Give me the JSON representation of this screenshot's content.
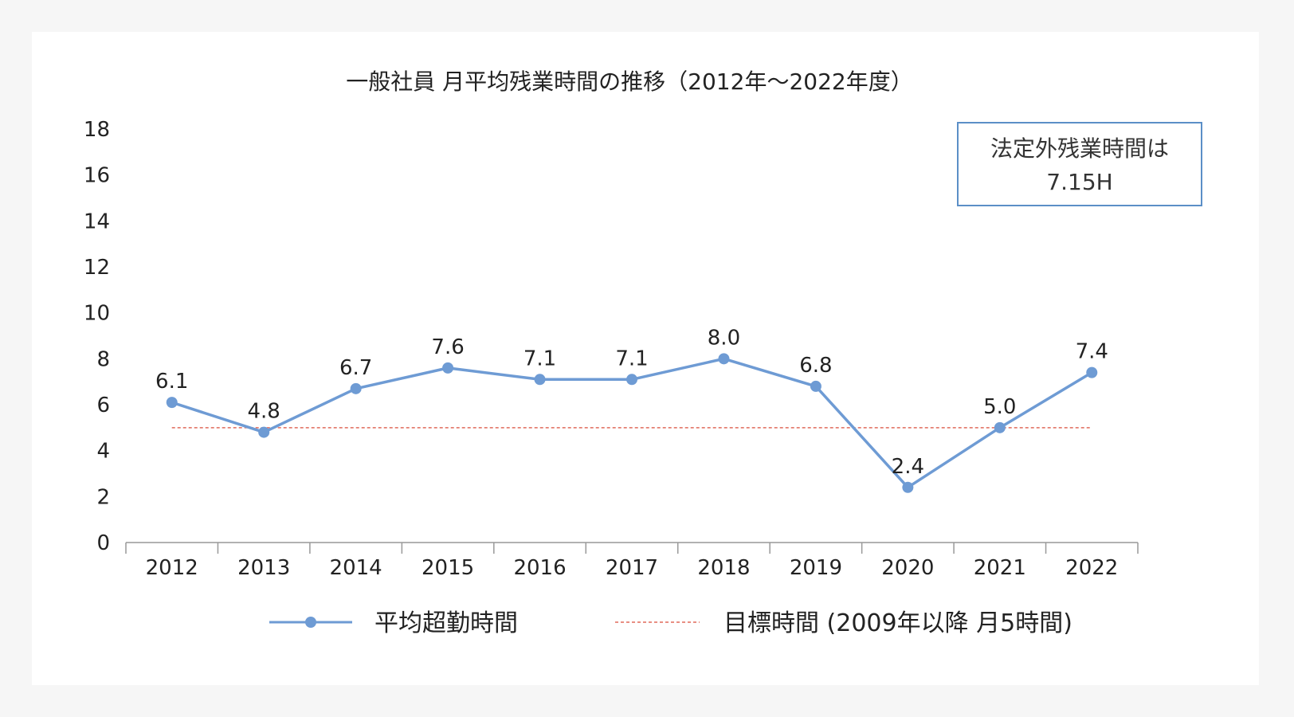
{
  "chart_data": {
    "type": "line",
    "title": "一般社員 月平均残業時間の推移（2012年〜2022年度）",
    "categories": [
      "2012",
      "2013",
      "2014",
      "2015",
      "2016",
      "2017",
      "2018",
      "2019",
      "2020",
      "2021",
      "2022"
    ],
    "series": [
      {
        "name": "平均超勤時間",
        "values": [
          6.1,
          4.8,
          6.7,
          7.6,
          7.1,
          7.1,
          8.0,
          6.8,
          2.4,
          5.0,
          7.4
        ],
        "data_labels": [
          "6.1",
          "4.8",
          "6.7",
          "7.6",
          "7.1",
          "7.1",
          "8.0",
          "6.8",
          "2.4",
          "5.0",
          "7.4"
        ],
        "color": "#6e9bd4",
        "marker": "circle"
      },
      {
        "name": "目標時間 (2009年以降 月5時間)",
        "values": [
          5,
          5,
          5,
          5,
          5,
          5,
          5,
          5,
          5,
          5,
          5
        ],
        "color": "#e06a5a",
        "style": "dashed"
      }
    ],
    "ylim": [
      0,
      18
    ],
    "yticks": [
      "0",
      "2",
      "4",
      "6",
      "8",
      "10",
      "12",
      "14",
      "16",
      "18"
    ],
    "grid": false,
    "legend": "bottom",
    "annotation": {
      "lines": [
        "法定外残業時間は",
        "7.15H"
      ],
      "placement": "top-right",
      "border_color": "#5b8fc7"
    }
  }
}
